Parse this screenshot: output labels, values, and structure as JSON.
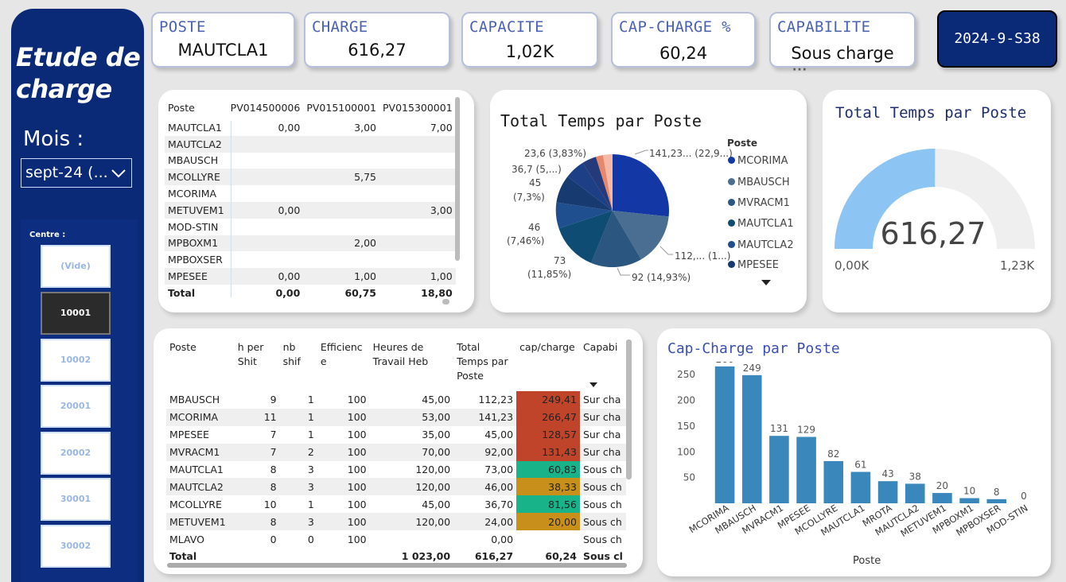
{
  "sidebar": {
    "title": "Etude de charge",
    "mois_label": "Mois :",
    "mois_value": "sept-24 (...",
    "centre_label": "Centre :",
    "centres": [
      "(Vide)",
      "10001",
      "10002",
      "20001",
      "20002",
      "30001",
      "30002"
    ],
    "selected_centre": "10001"
  },
  "kpis": [
    {
      "label": "POSTE",
      "value": "MAUTCLA1"
    },
    {
      "label": "CHARGE",
      "value": "616,27"
    },
    {
      "label": "CAPACITE",
      "value": "1,02K"
    },
    {
      "label": "CAP-CHARGE %",
      "value": "60,24"
    },
    {
      "label": "CAPABILITE",
      "value": "Sous charge"
    }
  ],
  "date_badge": "2024-9-S38",
  "more_dots": "···",
  "matrix_table": {
    "headers": [
      "Poste",
      "PV014500006",
      "PV015100001",
      "PV015300001"
    ],
    "rows": [
      [
        "MAUTCLA1",
        "0,00",
        "3,00",
        "7,00"
      ],
      [
        "MAUTCLA2",
        "",
        "",
        ""
      ],
      [
        "MBAUSCH",
        "",
        "",
        ""
      ],
      [
        "MCOLLYRE",
        "",
        "5,75",
        ""
      ],
      [
        "MCORIMA",
        "",
        "",
        ""
      ],
      [
        "METUVEM1",
        "0,00",
        "",
        "3,00"
      ],
      [
        "MOD-STIN",
        "",
        "",
        ""
      ],
      [
        "MPBOXM1",
        "",
        "2,00",
        ""
      ],
      [
        "MPBOXSER",
        "",
        "",
        ""
      ],
      [
        "MPESEE",
        "0,00",
        "1,00",
        "1,00"
      ]
    ],
    "total": [
      "Total",
      "0,00",
      "60,75",
      "18,80"
    ]
  },
  "pie": {
    "title": "Total Temps par Poste",
    "legend_title": "Poste",
    "legend": [
      {
        "name": "MCORIMA",
        "color": "#1437a6"
      },
      {
        "name": "MBAUSCH",
        "color": "#4a6e91"
      },
      {
        "name": "MVRACM1",
        "color": "#2a5680"
      },
      {
        "name": "MAUTCLA1",
        "color": "#0e4c73"
      },
      {
        "name": "MAUTCLA2",
        "color": "#1f4f8f"
      },
      {
        "name": "MPESEE",
        "color": "#173b70"
      }
    ],
    "labels": [
      "141,23... (22,9...)",
      "112,... (1...)",
      "92 (14,93%)",
      "73",
      "(11,85%)",
      "46",
      "(7,46%)",
      "45",
      "(7,3%)",
      "36,7 (5,...)",
      "23,6 (3,83%)"
    ]
  },
  "gauge": {
    "title": "Total Temps par Poste",
    "value": "616,27",
    "min": "0,00K",
    "max": "1,23K",
    "fraction": 0.501
  },
  "detail_table": {
    "headers": [
      "Poste",
      "h per Shit",
      "nb shif",
      "Efficienc e",
      "Heures de Travail Heb",
      "Total Temps par Poste",
      "cap/charge",
      "Capabi"
    ],
    "rows": [
      {
        "cells": [
          "MBAUSCH",
          "9",
          "1",
          "100",
          "45,00",
          "112,23",
          "249,41",
          "Sur cha"
        ],
        "color": "#c0442a"
      },
      {
        "cells": [
          "MCORIMA",
          "11",
          "1",
          "100",
          "53,00",
          "141,23",
          "266,47",
          "Sur cha"
        ],
        "color": "#c0442a"
      },
      {
        "cells": [
          "MPESEE",
          "7",
          "1",
          "100",
          "35,00",
          "45,00",
          "128,57",
          "Sur cha"
        ],
        "color": "#c0442a"
      },
      {
        "cells": [
          "MVRACM1",
          "7",
          "2",
          "100",
          "70,00",
          "92,00",
          "131,43",
          "Sur cha"
        ],
        "color": "#c0442a"
      },
      {
        "cells": [
          "MAUTCLA1",
          "8",
          "3",
          "100",
          "120,00",
          "73,00",
          "60,83",
          "Sous ch"
        ],
        "color": "#19b38a"
      },
      {
        "cells": [
          "MAUTCLA2",
          "8",
          "3",
          "100",
          "120,00",
          "46,00",
          "38,33",
          "Sous ch"
        ],
        "color": "#c8901a"
      },
      {
        "cells": [
          "MCOLLYRE",
          "10",
          "1",
          "100",
          "45,00",
          "36,70",
          "81,56",
          "Sous ch"
        ],
        "color": "#19b38a"
      },
      {
        "cells": [
          "METUVEM1",
          "8",
          "3",
          "100",
          "120,00",
          "24,00",
          "20,00",
          "Sous ch"
        ],
        "color": "#c8901a"
      },
      {
        "cells": [
          "MLAVO",
          "0",
          "0",
          "100",
          "",
          "0,00",
          "",
          "Sous ch"
        ],
        "color": ""
      }
    ],
    "total": [
      "Total",
      "",
      "",
      "",
      "1 023,00",
      "616,27",
      "60,24",
      "Sous cl"
    ]
  },
  "bar_chart": {
    "title": "Cap-Charge par Poste",
    "xlabel": "Poste"
  },
  "chart_data": {
    "type": "bar",
    "title": "Cap-Charge par Poste",
    "xlabel": "Poste",
    "ylabel": "",
    "categories": [
      "MCORIMA",
      "MBAUSCH",
      "MVRACM1",
      "MPESEE",
      "MCOLLYRE",
      "MAUTCLA1",
      "MROTA",
      "MAUTCLA2",
      "METUVEM1",
      "MPBOXM1",
      "MPBOXSER",
      "MOD-STIN"
    ],
    "values": [
      266,
      249,
      131,
      129,
      82,
      61,
      43,
      38,
      20,
      10,
      8,
      0
    ],
    "yticks": [
      50,
      100,
      150,
      200,
      250
    ],
    "ylim": [
      0,
      275
    ],
    "color": "#3a88bb"
  }
}
